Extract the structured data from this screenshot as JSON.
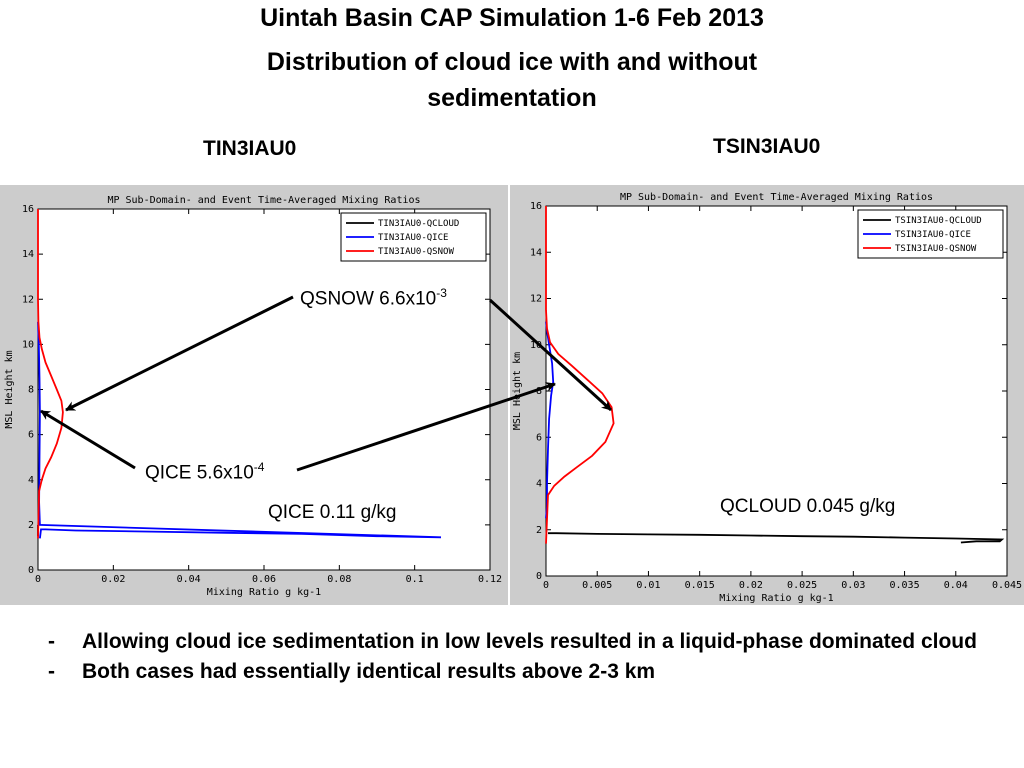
{
  "slide": {
    "title": "Uintah Basin CAP Simulation 1-6 Feb 2013",
    "subtitle": "Distribution of cloud ice with and without sedimentation",
    "case_left": "TIN3IAU0",
    "case_right": "TSIN3IAU0",
    "bullets": [
      "Allowing cloud ice sedimentation in low levels resulted in a liquid-phase dominated cloud",
      "Both cases had essentially identical results above 2-3 km"
    ],
    "bullet_marker": "-"
  },
  "annotations": {
    "qsnow_label": "QSNOW 6.6x10",
    "qsnow_exp": "-3",
    "qice_label": "QICE 5.6x10",
    "qice_exp": "-4",
    "qice_left_value": "QICE 0.11 g/kg",
    "qcloud_right_value": "QCLOUD 0.045 g/kg"
  },
  "chart_data": [
    {
      "type": "line",
      "title": "MP Sub-Domain- and Event Time-Averaged Mixing Ratios",
      "xlabel": "Mixing Ratio g kg-1",
      "ylabel": "MSL Height km",
      "xlim": [
        0,
        0.12
      ],
      "ylim": [
        0,
        16
      ],
      "xticks": [
        0,
        0.02,
        0.04,
        0.06,
        0.08,
        0.1,
        0.12
      ],
      "xtick_labels": [
        "0",
        "0.02",
        "0.04",
        "0.06",
        "0.08",
        "0.1",
        "0.12"
      ],
      "yticks": [
        0,
        2,
        4,
        6,
        8,
        10,
        12,
        14,
        16
      ],
      "ytick_labels": [
        "0",
        "2",
        "4",
        "6",
        "8",
        "10",
        "12",
        "14",
        "16"
      ],
      "legend_position": "top-right",
      "grid": false,
      "series": [
        {
          "name": "TIN3IAU0-QCLOUD",
          "color": "#000000",
          "x": [
            0,
            0,
            0
          ],
          "y": [
            1.5,
            1.8,
            2.0
          ]
        },
        {
          "name": "TIN3IAU0-QICE",
          "color": "#0000ff",
          "x": [
            0.0005,
            0.0008,
            0.002,
            0.01,
            0.03,
            0.05,
            0.07,
            0.09,
            0.107,
            0.0005,
            0.0003,
            0.0004,
            0.0005,
            0.0004,
            0.0002,
            0
          ],
          "y": [
            1.4,
            1.8,
            1.8,
            1.75,
            1.7,
            1.65,
            1.6,
            1.5,
            1.45,
            2.0,
            3.0,
            5.0,
            7.0,
            8.5,
            10.0,
            11.0
          ]
        },
        {
          "name": "TIN3IAU0-QSNOW",
          "color": "#ff0000",
          "x": [
            0,
            0.0003,
            0.001,
            0.002,
            0.0035,
            0.005,
            0.0062,
            0.0066,
            0.0062,
            0.005,
            0.0035,
            0.002,
            0.001,
            0.0004,
            0.0001,
            0,
            0
          ],
          "y": [
            1.4,
            3.5,
            4.0,
            4.5,
            5.0,
            5.6,
            6.3,
            7.0,
            7.5,
            8.0,
            8.6,
            9.2,
            9.8,
            10.3,
            11.0,
            12.0,
            16.0
          ]
        }
      ]
    },
    {
      "type": "line",
      "title": "MP Sub-Domain- and Event Time-Averaged Mixing Ratios",
      "xlabel": "Mixing Ratio g kg-1",
      "ylabel": "MSL Height km",
      "xlim": [
        0,
        0.045
      ],
      "ylim": [
        0,
        16
      ],
      "xticks": [
        0,
        0.005,
        0.01,
        0.015,
        0.02,
        0.025,
        0.03,
        0.035,
        0.04,
        0.045
      ],
      "xtick_labels": [
        "0",
        "0.005",
        "0.01",
        "0.015",
        "0.02",
        "0.025",
        "0.03",
        "0.035",
        "0.04",
        "0.045"
      ],
      "yticks": [
        0,
        2,
        4,
        6,
        8,
        10,
        12,
        14,
        16
      ],
      "ytick_labels": [
        "0",
        "2",
        "4",
        "6",
        "8",
        "10",
        "12",
        "14",
        "16"
      ],
      "legend_position": "top-right",
      "grid": false,
      "series": [
        {
          "name": "TSIN3IAU0-QCLOUD",
          "color": "#000000",
          "x": [
            0.0002,
            0.001,
            0.005,
            0.01,
            0.015,
            0.02,
            0.025,
            0.03,
            0.035,
            0.04,
            0.0445,
            0.0443,
            0.042,
            0.0405
          ],
          "y": [
            1.85,
            1.85,
            1.82,
            1.8,
            1.78,
            1.75,
            1.72,
            1.7,
            1.66,
            1.62,
            1.58,
            1.5,
            1.5,
            1.45
          ]
        },
        {
          "name": "TSIN3IAU0-QICE",
          "color": "#0000ff",
          "x": [
            0,
            0.0001,
            0.0001,
            0.0002,
            0.0003,
            0.0005,
            0.0007,
            0.0006,
            0.0003,
            0.0001,
            0
          ],
          "y": [
            2.5,
            3.0,
            4.0,
            5.5,
            6.8,
            7.8,
            8.4,
            9.2,
            10.0,
            10.6,
            11.0
          ]
        },
        {
          "name": "TSIN3IAU0-QSNOW",
          "color": "#ff0000",
          "x": [
            0,
            0.0002,
            0.0008,
            0.0018,
            0.003,
            0.0045,
            0.0058,
            0.0066,
            0.0064,
            0.0055,
            0.004,
            0.0025,
            0.0012,
            0.0004,
            0.0001,
            0,
            0
          ],
          "y": [
            1.4,
            3.5,
            3.9,
            4.3,
            4.7,
            5.2,
            5.8,
            6.6,
            7.3,
            7.9,
            8.5,
            9.1,
            9.6,
            10.1,
            10.7,
            11.5,
            16.0
          ]
        }
      ]
    }
  ]
}
